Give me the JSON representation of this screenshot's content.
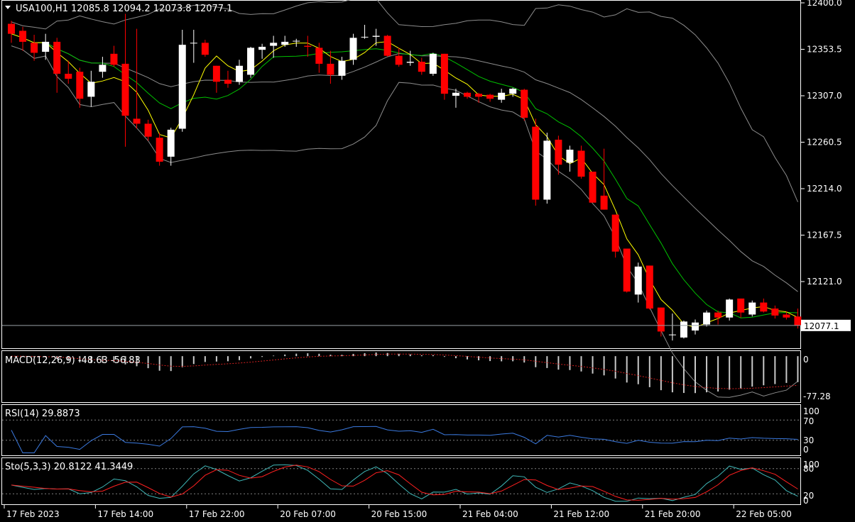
{
  "main_label": "USA100,H1  12085.8 12094.2 12073.8 12077.1",
  "price_axis": {
    "ticks": [
      "12400.0",
      "12353.5",
      "12307.0",
      "12260.5",
      "12214.0",
      "12167.5",
      "12121.0"
    ],
    "tick_values": [
      12400.0,
      12353.5,
      12307.0,
      12260.5,
      12214.0,
      12167.5,
      12121.0
    ],
    "current_price": "12077.1",
    "current_price_value": 12077.1
  },
  "time_axis": {
    "labels": [
      "17 Feb 2023",
      "17 Feb 14:00",
      "17 Feb 22:00",
      "20 Feb 07:00",
      "20 Feb 15:00",
      "21 Feb 04:00",
      "21 Feb 12:00",
      "21 Feb 20:00",
      "22 Feb 05:00"
    ],
    "label_bar_index": [
      0,
      8,
      16,
      24,
      32,
      40,
      48,
      56,
      64
    ]
  },
  "macd": {
    "label": "MACD(12,26,9) -48.63 -56.83",
    "axis_ticks": [
      "0",
      "-77.28"
    ],
    "axis_tick_values": [
      0,
      -77.28
    ]
  },
  "rsi": {
    "label": "RSI(14) 29.8873",
    "axis_ticks": [
      "100",
      "70",
      "30",
      "0"
    ],
    "axis_tick_values": [
      100,
      70,
      30,
      0
    ]
  },
  "stochastic": {
    "label": "Sto(5,3,3) 20.8122 41.3449",
    "axis_ticks": [
      "100",
      "80",
      "20",
      "0"
    ],
    "axis_tick_values": [
      100,
      80,
      20,
      0
    ]
  },
  "colors": {
    "bull_candle": "#ffffff",
    "bear_candle": "#ff0000",
    "bollinger": "#8c8c8c",
    "ma_fast": "#ffff00",
    "ma_slow": "#00c000",
    "rsi_line": "#3b7ae0",
    "sto_main": "#3fb7b7",
    "sto_signal": "#ff2020",
    "macd_hist": "#c8c8c8",
    "macd_signal": "#d02020"
  },
  "chart_data": {
    "type": "candlestick",
    "symbol": "USA100",
    "timeframe": "H1",
    "candles": [
      {
        "o": 12379,
        "h": 12382,
        "l": 12360,
        "c": 12369
      },
      {
        "o": 12372,
        "h": 12376,
        "l": 12352,
        "c": 12361
      },
      {
        "o": 12360,
        "h": 12368,
        "l": 12342,
        "c": 12350
      },
      {
        "o": 12351,
        "h": 12369,
        "l": 12343,
        "c": 12361
      },
      {
        "o": 12361,
        "h": 12365,
        "l": 12310,
        "c": 12329
      },
      {
        "o": 12329,
        "h": 12342,
        "l": 12319,
        "c": 12324
      },
      {
        "o": 12331,
        "h": 12335,
        "l": 12295,
        "c": 12304
      },
      {
        "o": 12306,
        "h": 12332,
        "l": 12296,
        "c": 12321
      },
      {
        "o": 12331,
        "h": 12346,
        "l": 12325,
        "c": 12338
      },
      {
        "o": 12349,
        "h": 12357,
        "l": 12336,
        "c": 12338
      },
      {
        "o": 12339,
        "h": 12389,
        "l": 12256,
        "c": 12287
      },
      {
        "o": 12284,
        "h": 12374,
        "l": 12274,
        "c": 12279
      },
      {
        "o": 12279,
        "h": 12283,
        "l": 12262,
        "c": 12266
      },
      {
        "o": 12265,
        "h": 12270,
        "l": 12237,
        "c": 12241
      },
      {
        "o": 12246,
        "h": 12275,
        "l": 12237,
        "c": 12273
      },
      {
        "o": 12274,
        "h": 12373,
        "l": 12271,
        "c": 12358
      },
      {
        "o": 12360,
        "h": 12373,
        "l": 12340,
        "c": 12360
      },
      {
        "o": 12360,
        "h": 12363,
        "l": 12346,
        "c": 12348
      },
      {
        "o": 12337,
        "h": 12337,
        "l": 12310,
        "c": 12321
      },
      {
        "o": 12323,
        "h": 12332,
        "l": 12315,
        "c": 12319
      },
      {
        "o": 12321,
        "h": 12343,
        "l": 12318,
        "c": 12337
      },
      {
        "o": 12328,
        "h": 12356,
        "l": 12325,
        "c": 12355
      },
      {
        "o": 12353,
        "h": 12359,
        "l": 12344,
        "c": 12356
      },
      {
        "o": 12357,
        "h": 12367,
        "l": 12345,
        "c": 12360
      },
      {
        "o": 12358,
        "h": 12367,
        "l": 12356,
        "c": 12361
      },
      {
        "o": 12362,
        "h": 12364,
        "l": 12356,
        "c": 12362
      },
      {
        "o": 12357,
        "h": 12367,
        "l": 12346,
        "c": 12356
      },
      {
        "o": 12355,
        "h": 12360,
        "l": 12330,
        "c": 12339
      },
      {
        "o": 12339,
        "h": 12352,
        "l": 12319,
        "c": 12328
      },
      {
        "o": 12327,
        "h": 12346,
        "l": 12323,
        "c": 12342
      },
      {
        "o": 12343,
        "h": 12369,
        "l": 12338,
        "c": 12365
      },
      {
        "o": 12366,
        "h": 12378,
        "l": 12364,
        "c": 12366
      },
      {
        "o": 12366,
        "h": 12374,
        "l": 12357,
        "c": 12367
      },
      {
        "o": 12367,
        "h": 12368,
        "l": 12346,
        "c": 12347
      },
      {
        "o": 12347,
        "h": 12355,
        "l": 12336,
        "c": 12338
      },
      {
        "o": 12340,
        "h": 12352,
        "l": 12337,
        "c": 12341
      },
      {
        "o": 12341,
        "h": 12345,
        "l": 12328,
        "c": 12331
      },
      {
        "o": 12329,
        "h": 12350,
        "l": 12327,
        "c": 12349
      },
      {
        "o": 12349,
        "h": 12349,
        "l": 12303,
        "c": 12309
      },
      {
        "o": 12307,
        "h": 12314,
        "l": 12295,
        "c": 12310
      },
      {
        "o": 12310,
        "h": 12311,
        "l": 12304,
        "c": 12306
      },
      {
        "o": 12309,
        "h": 12310,
        "l": 12300,
        "c": 12306
      },
      {
        "o": 12308,
        "h": 12309,
        "l": 12301,
        "c": 12304
      },
      {
        "o": 12303,
        "h": 12314,
        "l": 12300,
        "c": 12310
      },
      {
        "o": 12309,
        "h": 12315,
        "l": 12306,
        "c": 12314
      },
      {
        "o": 12313,
        "h": 12314,
        "l": 12282,
        "c": 12285
      },
      {
        "o": 12276,
        "h": 12284,
        "l": 12197,
        "c": 12203
      },
      {
        "o": 12203,
        "h": 12270,
        "l": 12199,
        "c": 12262
      },
      {
        "o": 12263,
        "h": 12267,
        "l": 12228,
        "c": 12238
      },
      {
        "o": 12240,
        "h": 12257,
        "l": 12231,
        "c": 12253
      },
      {
        "o": 12252,
        "h": 12257,
        "l": 12224,
        "c": 12226
      },
      {
        "o": 12231,
        "h": 12231,
        "l": 12200,
        "c": 12200
      },
      {
        "o": 12207,
        "h": 12254,
        "l": 12193,
        "c": 12193
      },
      {
        "o": 12188,
        "h": 12188,
        "l": 12145,
        "c": 12151
      },
      {
        "o": 12154,
        "h": 12154,
        "l": 12110,
        "c": 12111
      },
      {
        "o": 12108,
        "h": 12140,
        "l": 12100,
        "c": 12136
      },
      {
        "o": 12137,
        "h": 12137,
        "l": 12093,
        "c": 12094
      },
      {
        "o": 12095,
        "h": 12095,
        "l": 12066,
        "c": 12071
      },
      {
        "o": 12068,
        "h": 12089,
        "l": 12062,
        "c": 12068
      },
      {
        "o": 12065,
        "h": 12082,
        "l": 12064,
        "c": 12081
      },
      {
        "o": 12072,
        "h": 12083,
        "l": 12068,
        "c": 12080
      },
      {
        "o": 12078,
        "h": 12092,
        "l": 12076,
        "c": 12090
      },
      {
        "o": 12090,
        "h": 12092,
        "l": 12078,
        "c": 12085
      },
      {
        "o": 12085,
        "h": 12104,
        "l": 12082,
        "c": 12103
      },
      {
        "o": 12104,
        "h": 12104,
        "l": 12085,
        "c": 12090
      },
      {
        "o": 12088,
        "h": 12102,
        "l": 12086,
        "c": 12100
      },
      {
        "o": 12100,
        "h": 12104,
        "l": 12090,
        "c": 12091
      },
      {
        "o": 12094,
        "h": 12097,
        "l": 12084,
        "c": 12087
      },
      {
        "o": 12088,
        "h": 12091,
        "l": 12083,
        "c": 12085
      },
      {
        "o": 12086,
        "h": 12094,
        "l": 12074,
        "c": 12077
      }
    ]
  }
}
